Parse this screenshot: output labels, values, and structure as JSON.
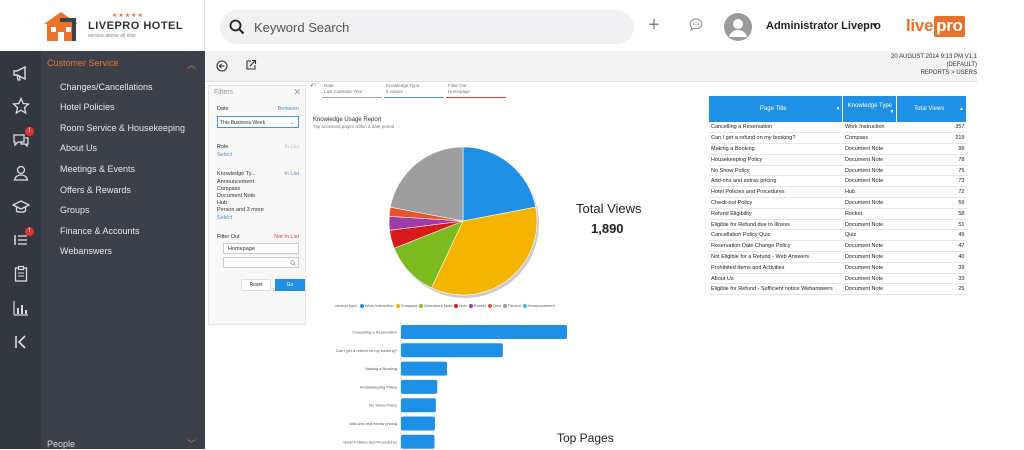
{
  "app": {
    "logo_name": "LIVEPRO HOTEL",
    "logo_tagline": "service above all else",
    "logo_stars": "★★★★★",
    "brand": "live",
    "brand_suffix": "pro",
    "accent": "#e8712b",
    "primary": "#1e90e6"
  },
  "search": {
    "placeholder": "Keyword Search"
  },
  "user": {
    "name": "Administrator Livepro"
  },
  "sidebar": {
    "section": "Customer Service",
    "items": [
      {
        "label": "Changes/Cancellations"
      },
      {
        "label": "Hotel Policies"
      },
      {
        "label": "Room Service & Housekeeping"
      },
      {
        "label": "About Us"
      },
      {
        "label": "Meetings & Events"
      },
      {
        "label": "Offers & Rewards"
      },
      {
        "label": "Groups"
      },
      {
        "label": "Finance & Accounts"
      },
      {
        "label": "Webanswers"
      }
    ],
    "footer_section": "People"
  },
  "iconbar": {
    "icons": [
      "megaphone-icon",
      "star-icon",
      "chat-icon",
      "user-icon",
      "graduation-cap-icon",
      "list-icon",
      "clipboard-icon",
      "bar-chart-icon",
      "collapse-icon"
    ],
    "badges": {
      "chat": "!",
      "list": "!"
    }
  },
  "header_meta": {
    "date": "20 AUGUST 2014 9:13 PM V1.1",
    "default": "(DEFAULT)",
    "breadcrumb": "REPORTS > USERS"
  },
  "filters": {
    "title": "Filters",
    "date_label": "Date",
    "date_mode": "Between",
    "date_value": "This Business Week",
    "role_label": "Role",
    "role_mode": "In List",
    "role_link": "Select",
    "ktype_label": "Knowledge Ty...",
    "ktype_mode": "In List",
    "ktype_values": [
      "Announcement",
      "Compass",
      "Document Note",
      "Hub",
      "Person and 3 more"
    ],
    "ktype_link": "Select",
    "filterout_label": "Filter Out",
    "filterout_mode": "Not In List",
    "filterout_value": "Homepage",
    "reset": "Reset",
    "go": "Go"
  },
  "filter_bar": {
    "date_label": "Date",
    "date_value": "Last Calendar Year",
    "ktype_label": "Knowledge Type",
    "ktype_value": "8 values",
    "filterout_label": "Filter Out",
    "filterout_value": "Homepage"
  },
  "report": {
    "title": "Knowledge Usage Report",
    "subtitle": "Top accessed pages within a date period",
    "total_label": "Total Views",
    "total_value": "1,890",
    "bar_title": "Top Pages"
  },
  "chart_data": [
    {
      "type": "pie",
      "legend_title": "version type:",
      "categories": [
        "Work Instruction",
        "Compass",
        "Document Note",
        "Hub",
        "Rocket",
        "Quiz",
        "Person",
        "Announcement"
      ],
      "colors": [
        "#1e90e6",
        "#f5b400",
        "#7cba1f",
        "#d91a1a",
        "#a03aa8",
        "#e8532a",
        "#9e9e9e",
        "#3fb7e8"
      ],
      "values": [
        22,
        35,
        12,
        4,
        3,
        2,
        22,
        0
      ],
      "legend_position": "bottom"
    },
    {
      "type": "bar",
      "orientation": "horizontal",
      "categories": [
        "Cancelling a Reservation",
        "Can I get a refund on my booking?",
        "Making a Booking",
        "Housekeeping Policy",
        "No Show Policy",
        "Add-ons and extras pricing",
        "Hotel Policies and Procedures"
      ],
      "values": [
        357,
        219,
        99,
        78,
        75,
        73,
        72
      ],
      "xlim": [
        0,
        357
      ],
      "color": "#1e90e6"
    }
  ],
  "table": {
    "headers": [
      "Page Title",
      "Knowledge Type",
      "Total Views"
    ],
    "rows": [
      [
        "Cancelling a Reservation",
        "Work Instruction",
        "357"
      ],
      [
        "Can I get a refund on my booking?",
        "Compass",
        "219"
      ],
      [
        "Making a Booking",
        "Document Note",
        "99"
      ],
      [
        "Housekeeping Policy",
        "Document Note",
        "78"
      ],
      [
        "No Show Policy",
        "Document Note",
        "75"
      ],
      [
        "Add-ons and extras pricing",
        "Document Note",
        "73"
      ],
      [
        "Hotel Policies and Procedures",
        "Hub",
        "72"
      ],
      [
        "Check-out Policy",
        "Document Note",
        "59"
      ],
      [
        "Refund Eligibility",
        "Rocket",
        "58"
      ],
      [
        "Eligible for Refund due to Illness",
        "Document Note",
        "51"
      ],
      [
        "Cancellation Policy Quiz",
        "Quiz",
        "49"
      ],
      [
        "Reservation Date Change Policy",
        "Document Note",
        "47"
      ],
      [
        "Not Eligible for a Refund - Web Answers",
        "Document Note",
        "40"
      ],
      [
        "Prohibited Items and Activities",
        "Document Note",
        "39"
      ],
      [
        "About Us",
        "Document Note",
        "33"
      ],
      [
        "Eligible for Refund - Sufficient notice Webanswers",
        "Document Note",
        "25"
      ]
    ]
  }
}
